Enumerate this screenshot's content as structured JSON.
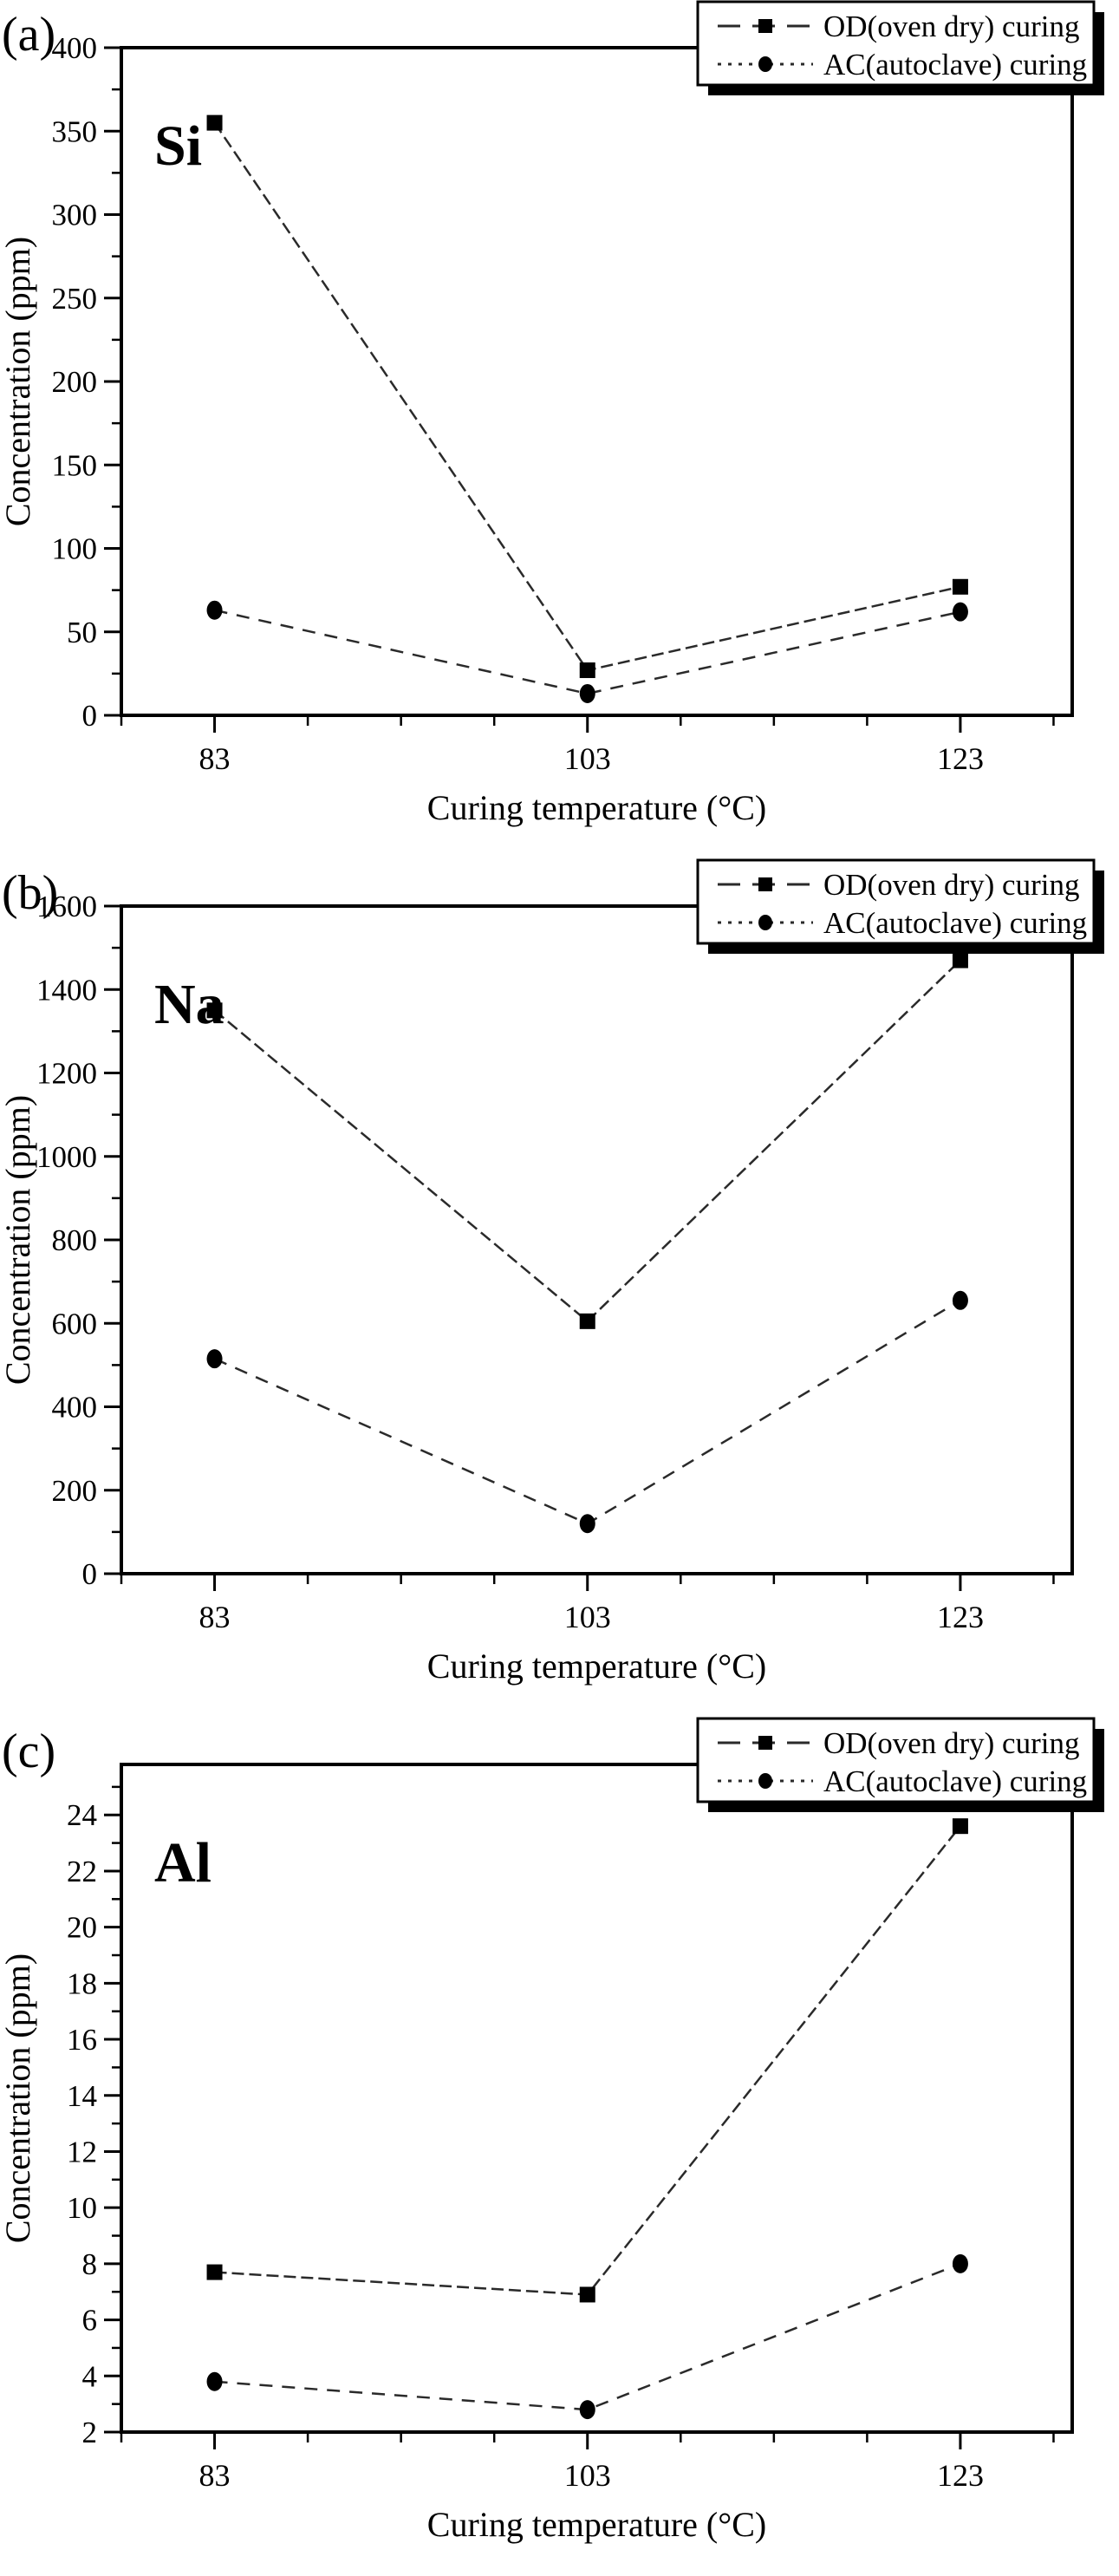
{
  "page": {
    "background": "#ffffff",
    "ink": "#000000",
    "line_color": "#2a2a2a"
  },
  "x_axis": {
    "label": "Curing temperature (°C)",
    "tick_labels": [
      "83",
      "103",
      "123"
    ],
    "tick_values": [
      83,
      103,
      123
    ],
    "range": [
      78,
      129
    ],
    "minor_step": 5
  },
  "legend": {
    "position": "top-right",
    "items": [
      {
        "label": "OD(oven dry) curing",
        "marker": "square",
        "line_style": "dash"
      },
      {
        "label": "AC(autoclave) curing",
        "marker": "circle",
        "line_style": "dot"
      }
    ]
  },
  "chart_data": [
    {
      "type": "line",
      "panel_label": "(a)",
      "title": "Si",
      "xlabel": "Curing temperature (°C)",
      "ylabel": "Concentration (ppm)",
      "x": [
        83,
        103,
        123
      ],
      "ylim": [
        0,
        400
      ],
      "yticks": [
        0,
        50,
        100,
        150,
        200,
        250,
        300,
        350,
        400
      ],
      "yminor_step": 25,
      "series": [
        {
          "name": "OD(oven dry) curing",
          "marker": "square",
          "line_style": "dash",
          "values": [
            355,
            27,
            77
          ]
        },
        {
          "name": "AC(autoclave) curing",
          "marker": "circle",
          "line_style": "dot",
          "values": [
            63,
            13,
            62
          ]
        }
      ]
    },
    {
      "type": "line",
      "panel_label": "(b)",
      "title": "Na",
      "xlabel": "Curing temperature (°C)",
      "ylabel": "Concentration (ppm)",
      "x": [
        83,
        103,
        123
      ],
      "ylim": [
        0,
        1600
      ],
      "yticks": [
        0,
        200,
        400,
        600,
        800,
        1000,
        1200,
        1400,
        1600
      ],
      "yminor_step": 100,
      "series": [
        {
          "name": "OD(oven dry) curing",
          "marker": "square",
          "line_style": "dash",
          "values": [
            1350,
            605,
            1470
          ]
        },
        {
          "name": "AC(autoclave) curing",
          "marker": "circle",
          "line_style": "dot",
          "values": [
            515,
            120,
            655
          ]
        }
      ]
    },
    {
      "type": "line",
      "panel_label": "(c)",
      "title": "Al",
      "xlabel": "Curing temperature (°C)",
      "ylabel": "Concentration (ppm)",
      "x": [
        83,
        103,
        123
      ],
      "ylim": [
        2,
        25.8
      ],
      "yticks": [
        2,
        4,
        6,
        8,
        10,
        12,
        14,
        16,
        18,
        20,
        22,
        24
      ],
      "yminor_step": 1,
      "series": [
        {
          "name": "OD(oven dry) curing",
          "marker": "square",
          "line_style": "dash",
          "values": [
            7.7,
            6.9,
            23.6
          ]
        },
        {
          "name": "AC(autoclave) curing",
          "marker": "circle",
          "line_style": "dot",
          "values": [
            3.8,
            2.8,
            8.0
          ]
        }
      ]
    }
  ]
}
